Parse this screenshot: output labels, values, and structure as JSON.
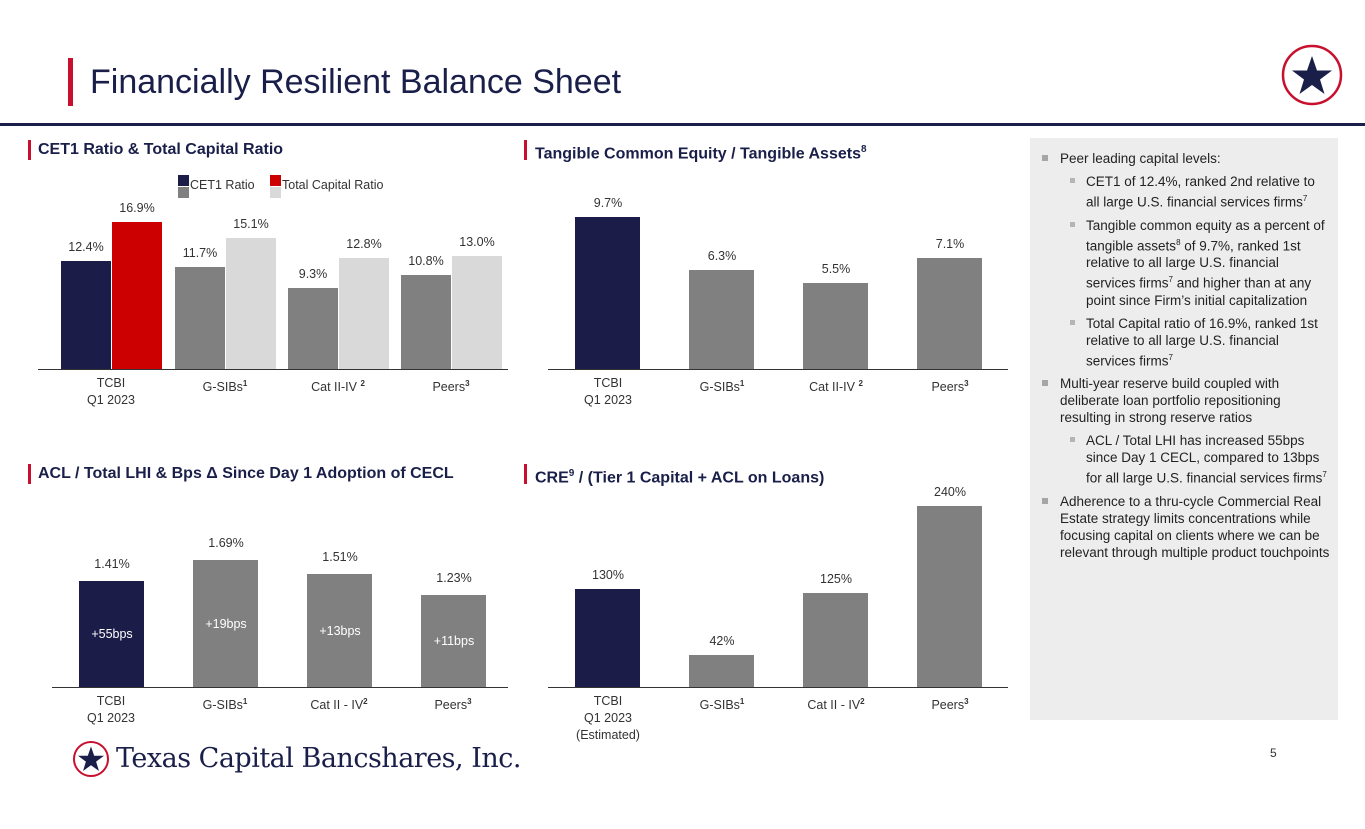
{
  "title": "Financially Resilient Balance Sheet",
  "colors": {
    "navy": "#1a1f4a",
    "red": "#c8102e",
    "gray": "#808080",
    "light_gray": "#d9d9d9",
    "bar_navy": "#1c1c48",
    "bar_red": "#cc0000"
  },
  "page_number": "5",
  "company_name": "Texas Capital Bancshares, Inc.",
  "categories": {
    "tcbi": "TCBI",
    "tcbi_sub": "Q1 2023",
    "tcbi_est": "(Estimated)",
    "gsibs": "G-SIBs",
    "cat1": "Cat II-IV",
    "cat2": "Cat II - IV",
    "peers": "Peers",
    "fn1": "1",
    "fn2": "2",
    "fn3": "3"
  },
  "chart_data": [
    {
      "type": "bar",
      "title": "CET1 Ratio & Total Capital Ratio",
      "categories": [
        "TCBI Q1 2023",
        "G-SIBs",
        "Cat II-IV",
        "Peers"
      ],
      "legend": [
        "CET1 Ratio",
        "Total Capital Ratio"
      ],
      "series": [
        {
          "name": "CET1 Ratio",
          "values": [
            12.4,
            11.7,
            9.3,
            10.8
          ],
          "labels": [
            "12.4%",
            "11.7%",
            "9.3%",
            "10.8%"
          ]
        },
        {
          "name": "Total Capital Ratio",
          "values": [
            16.9,
            15.1,
            12.8,
            13.0
          ],
          "labels": [
            "16.9%",
            "15.1%",
            "12.8%",
            "13.0%"
          ]
        }
      ],
      "ylim": [
        0,
        20
      ]
    },
    {
      "type": "bar",
      "title": "Tangible Common Equity / Tangible Assets",
      "title_sup": "8",
      "categories": [
        "TCBI Q1 2023",
        "G-SIBs",
        "Cat II-IV",
        "Peers"
      ],
      "values": [
        9.7,
        6.3,
        5.5,
        7.1
      ],
      "labels": [
        "9.7%",
        "6.3%",
        "5.5%",
        "7.1%"
      ],
      "ylim": [
        0,
        12
      ]
    },
    {
      "type": "bar",
      "title": "ACL / Total LHI & Bps Δ Since Day 1 Adoption of CECL",
      "categories": [
        "TCBI Q1 2023",
        "G-SIBs",
        "Cat II - IV",
        "Peers"
      ],
      "values": [
        1.41,
        1.69,
        1.51,
        1.23
      ],
      "labels": [
        "1.41%",
        "1.69%",
        "1.51%",
        "1.23%"
      ],
      "inner_labels": [
        "+55bps",
        "+19bps",
        "+13bps",
        "+11bps"
      ],
      "ylim": [
        0,
        2
      ]
    },
    {
      "type": "bar",
      "title": "CRE / (Tier 1 Capital + ACL on Loans)",
      "title_pre": "CRE",
      "title_sup": "9",
      "title_post": " / (Tier 1 Capital + ACL on Loans)",
      "categories": [
        "TCBI Q1 2023 (Estimated)",
        "G-SIBs",
        "Cat II - IV",
        "Peers"
      ],
      "values": [
        130,
        42,
        125,
        240
      ],
      "labels": [
        "130%",
        "42%",
        "125%",
        "240%"
      ],
      "ylim": [
        0,
        280
      ]
    }
  ],
  "bullets": {
    "b1": "Peer leading capital levels:",
    "b1a": "CET1 of 12.4%, ranked 2nd relative to all large U.S. financial services firms",
    "b1a_sup": "7",
    "b1b_pre": "Tangible common equity as a percent of tangible assets",
    "b1b_sup1": "8",
    "b1b_mid": " of 9.7%, ranked 1st relative to all large U.S. financial services firms",
    "b1b_sup2": "7",
    "b1b_post": " and higher than at any point since Firm’s initial capitalization",
    "b1c": "Total Capital ratio of 16.9%, ranked 1st relative to all large U.S. financial services firms",
    "b1c_sup": "7",
    "b2": "Multi-year reserve build coupled with deliberate loan portfolio repositioning resulting in strong reserve ratios",
    "b2a": "ACL / Total LHI has increased 55bps since Day 1 CECL, compared to 13bps for all large U.S. financial services firms",
    "b2a_sup": "7",
    "b3": "Adherence to a thru-cycle Commercial Real Estate strategy limits concentrations while focusing capital on clients where we can be relevant through multiple product touchpoints"
  }
}
